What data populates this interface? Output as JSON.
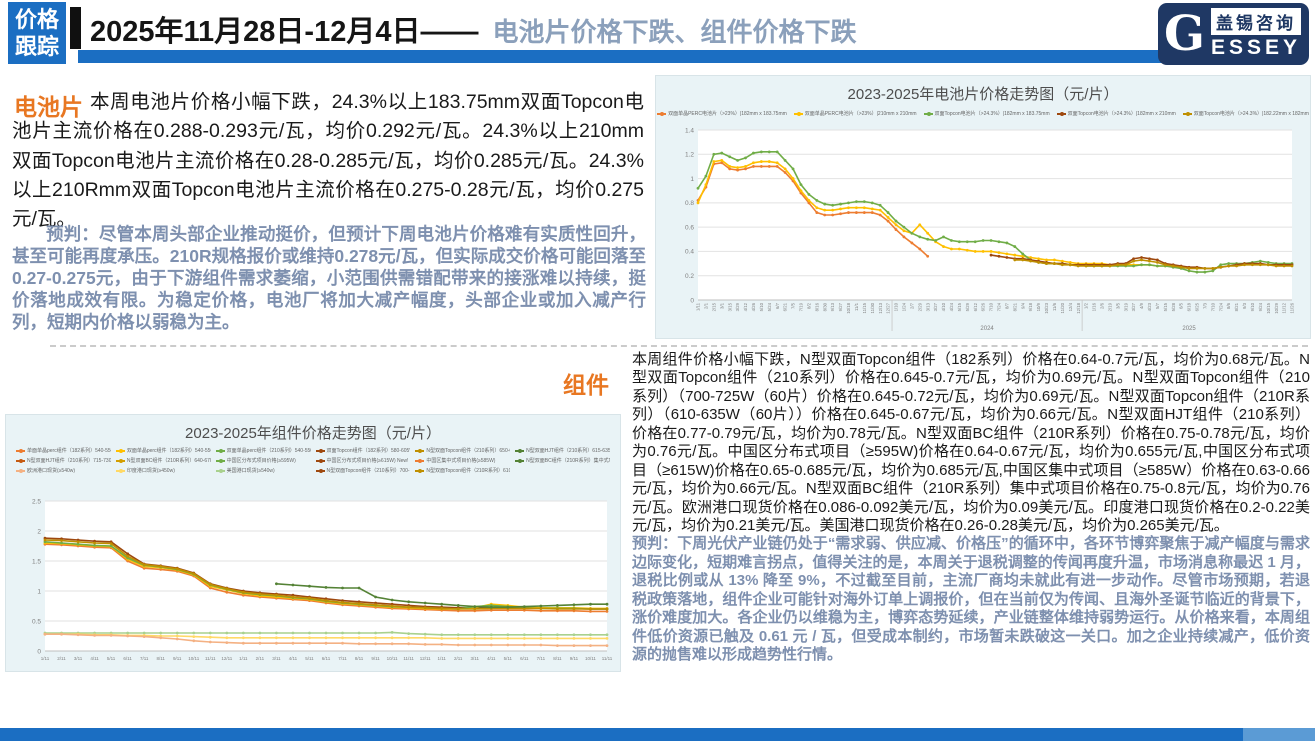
{
  "header": {
    "tab_line1": "价格",
    "tab_line2": "跟踪",
    "date_title": "2025年11月28日-12月4日——",
    "subtitle": "电池片价格下跌、组件价格下跌",
    "logo": {
      "g": "G",
      "cn": "盖锡咨询",
      "en_rest": "ESSEY"
    }
  },
  "cells_section": {
    "label": "电池片",
    "body": "本周电池片价格小幅下跌，24.3%以上183.75mm双面Topcon电池片主流价格在0.288-0.293元/瓦，均价0.292元/瓦。24.3%以上210mm双面Topcon电池片主流价格在0.28-0.285元/瓦，均价0.285元/瓦。24.3%以上210Rmm双面Topcon电池片主流价格在0.275-0.28元/瓦，均价0.275元/瓦。",
    "forecast": "预判：尽管本周头部企业推动挺价，但预计下周电池片价格难有实质性回升，甚至可能再度承压。210R规格报价或维持0.278元/瓦，但实际成交价格可能回落至0.27-0.275元，由于下游组件需求萎缩，小范围供需错配带来的接涨难以持续，挺价落地成效有限。为稳定价格，电池厂将加大减产幅度，头部企业或加入减产行列，短期内价格以弱稳为主。"
  },
  "modules_section": {
    "label": "组件",
    "body": "本周组件价格小幅下跌，N型双面Topcon组件（182系列）价格在0.64-0.7元/瓦，均价为0.68元/瓦。N型双面Topcon组件（210系列）价格在0.645-0.7元/瓦，均价为0.69元/瓦。N型双面Topcon组件（210系列）（700-725W（60片）价格在0.645-0.72元/瓦，均价为0.69元/瓦。N型双面Topcon组件（210R系列）（610-635W（60片））价格在0.645-0.67元/瓦，均价为0.66元/瓦。N型双面HJT组件（210系列）价格在0.77-0.79元/瓦，均价为0.78元/瓦。N型双面BC组件（210R系列）价格在0.75-0.78元/瓦，均价为0.76元/瓦。中国区分布式项目（≥595W)价格在0.64-0.67元/瓦，均价为0.655元/瓦,中国区分布式项目（≥615W)价格在0.65-0.685元/瓦，均价为0.685元/瓦,中国区集中式项目（≥585W）价格在0.63-0.66元/瓦，均价为0.66元/瓦。N型双面BC组件（210R系列）集中式项目价格在0.75-0.8元/瓦，均价为0.76元/瓦。欧洲港口现货价格在0.086-0.092美元/瓦，均价为0.09美元/瓦。印度港口现货价格在0.2-0.22美元/瓦，均价为0.21美元/瓦。美国港口现货价格在0.26-0.28美元/瓦，均价为0.265美元/瓦。",
    "forecast": "预判：下周光伏产业链仍处于“需求弱、供应减、价格压”的循环中，各环节博弈聚焦于减产幅度与需求边际变化，短期难言拐点，值得关注的是，本周关于退税调整的传闻再度升温，市场消息称最迟 1 月，退税比例或从 13% 降至 9%，不过截至目前，主流厂商均未就此有进一步动作。尽管市场预期，若退税政策落地，组件企业可能针对海外订单上调报价，但在当前仅为传闻、且海外圣诞节临近的背景下，涨价难度加大。各企业仍以维稳为主，博弈态势延续，产业链整体维持弱势运行。从价格来看，本周组件低价资源已触及 0.61 元 / 瓦，但受成本制约，市场暂未跌破这一关口。加之企业持续减产，低价资源的抛售难以形成趋势性行情。"
  },
  "colors": {
    "accent_blue": "#1B6EC2",
    "navy": "#1F3864",
    "orange_label": "#E87722",
    "forecast_text": "#7E90AF",
    "panel_bg": "#E9F3F6"
  },
  "chart_data": [
    {
      "type": "line",
      "name": "cells-price-chart",
      "title": "2023-2025年电池片价格走势图（元/片）",
      "ylim": [
        0,
        1.4
      ],
      "yticks": [
        0,
        0.2,
        0.4,
        0.6,
        0.8,
        1,
        1.2,
        1.4
      ],
      "grid": true,
      "legend_position": "top",
      "rotate_xlabels": true,
      "xlabels": [
        "1/11",
        "2/1",
        "2/15",
        "3/1",
        "3/15",
        "3/29",
        "4/12",
        "4/26",
        "5/10",
        "5/24",
        "6/7",
        "6/21",
        "7/5",
        "7/19",
        "8/2",
        "8/16",
        "8/30",
        "9/13",
        "9/27",
        "10/18",
        "11/1",
        "11/15",
        "11/30",
        "12/13",
        "12/27",
        "1/10",
        "1/24",
        "2/7",
        "2/29",
        "3/13",
        "3/27",
        "4/10",
        "4/24",
        "5/15",
        "5/29",
        "6/12",
        "6/26",
        "7/10",
        "7/24",
        "8/7",
        "8/21",
        "9/4",
        "9/18",
        "10/9",
        "10/23",
        "11/6",
        "11/20",
        "12/4",
        "12/18",
        "1/2",
        "1/16",
        "2/6",
        "2/19",
        "3/5",
        "3/19",
        "3/27",
        "4/9",
        "4/23",
        "5/7",
        "5/15",
        "5/28",
        "6/5",
        "6/18",
        "6/25",
        "7/3",
        "7/10",
        "7/24",
        "8/6",
        "8/21",
        "9/3",
        "9/10",
        "9/24",
        "10/15",
        "10/29",
        "11/12",
        "11/26"
      ],
      "year_groups": [
        {
          "label": "2024",
          "center": 36.5
        },
        {
          "label": "2025",
          "center": 62
        }
      ],
      "year_separators": [
        24.5,
        48.5
      ],
      "legend": [
        {
          "color": "#ED7D31",
          "label": "双面单晶PERC电池片（>23%）|182mm x 183.75mm"
        },
        {
          "color": "#FFC000",
          "label": "双面单晶PERC电池片（>23%）|210mm x 210mm"
        },
        {
          "color": "#70AD47",
          "label": "双面Topcon电池片（>24.3%）|182mm x 183.75mm"
        },
        {
          "color": "#9E480E",
          "label": "双面Topcon电池片（>24.3%）|182mm x 210mm"
        },
        {
          "color": "#BF8F00",
          "label": "双面Topcon电池片（>24.3%）|182.22mm x 182mm"
        }
      ],
      "series": [
        {
          "name": "双面单晶PERC电池片（>23%）|182mm x 183.75mm",
          "color": "#ED7D31",
          "x0": 0,
          "values": [
            0.82,
            0.93,
            1.12,
            1.13,
            1.08,
            1.07,
            1.08,
            1.1,
            1.1,
            1.1,
            1.1,
            1.05,
            0.98,
            0.88,
            0.8,
            0.72,
            0.7,
            0.7,
            0.71,
            0.72,
            0.72,
            0.72,
            0.72,
            0.7,
            0.65,
            0.58,
            0.52,
            0.47,
            0.42,
            0.36
          ]
        },
        {
          "name": "双面单晶PERC电池片（>23%）|210mm x 210mm",
          "color": "#FFC000",
          "x0": 0,
          "values": [
            0.8,
            0.95,
            1.14,
            1.15,
            1.1,
            1.09,
            1.1,
            1.13,
            1.14,
            1.14,
            1.13,
            1.08,
            1.0,
            0.9,
            0.82,
            0.76,
            0.74,
            0.74,
            0.75,
            0.76,
            0.76,
            0.76,
            0.75,
            0.74,
            0.68,
            0.62,
            0.57,
            0.55,
            0.62,
            0.55,
            0.48,
            0.44,
            0.42,
            0.42,
            0.41,
            0.4,
            0.4,
            0.4,
            0.39,
            0.38,
            0.37,
            0.36,
            0.35,
            0.34,
            0.33,
            0.33,
            0.32,
            0.31,
            0.3,
            0.3,
            0.3,
            0.3,
            0.29,
            0.29,
            0.29,
            0.29,
            0.29,
            0.29,
            0.28,
            0.28,
            0.28
          ]
        },
        {
          "name": "双面Topcon电池片（>24.3%）|182mm x 183.75mm",
          "color": "#70AD47",
          "x0": 0,
          "values": [
            0.92,
            1.02,
            1.2,
            1.21,
            1.18,
            1.15,
            1.17,
            1.21,
            1.22,
            1.22,
            1.22,
            1.15,
            1.08,
            0.95,
            0.87,
            0.82,
            0.79,
            0.78,
            0.79,
            0.8,
            0.81,
            0.81,
            0.8,
            0.78,
            0.72,
            0.65,
            0.6,
            0.55,
            0.52,
            0.5,
            0.49,
            0.52,
            0.49,
            0.48,
            0.48,
            0.48,
            0.49,
            0.49,
            0.48,
            0.47,
            0.44,
            0.38,
            0.33,
            0.31,
            0.3,
            0.3,
            0.3,
            0.29,
            0.29,
            0.28,
            0.28,
            0.28,
            0.28,
            0.28,
            0.28,
            0.28,
            0.29,
            0.29,
            0.28,
            0.28,
            0.27,
            0.26,
            0.24,
            0.23,
            0.23,
            0.24,
            0.29,
            0.3,
            0.3,
            0.3,
            0.31,
            0.32,
            0.31,
            0.3,
            0.3,
            0.3
          ]
        },
        {
          "name": "双面Topcon电池片（>24.3%）|182mm x 210mm",
          "color": "#9E480E",
          "x0": 37,
          "values": [
            0.37,
            0.36,
            0.35,
            0.34,
            0.34,
            0.33,
            0.32,
            0.31,
            0.3,
            0.3,
            0.29,
            0.29,
            0.29,
            0.29,
            0.29,
            0.29,
            0.3,
            0.3,
            0.34,
            0.35,
            0.34,
            0.33,
            0.3,
            0.29,
            0.28,
            0.27,
            0.27,
            0.26,
            0.26,
            0.27,
            0.28,
            0.29,
            0.3,
            0.3,
            0.3,
            0.29,
            0.29,
            0.29,
            0.29
          ]
        },
        {
          "name": "双面Topcon电池片（>24.3%）|182.22mm x 182mm",
          "color": "#BF8F00",
          "x0": 40,
          "values": [
            0.33,
            0.33,
            0.32,
            0.31,
            0.3,
            0.3,
            0.29,
            0.29,
            0.28,
            0.28,
            0.28,
            0.28,
            0.28,
            0.29,
            0.29,
            0.32,
            0.33,
            0.32,
            0.31,
            0.29,
            0.28,
            0.27,
            0.26,
            0.26,
            0.26,
            0.26,
            0.27,
            0.28,
            0.28,
            0.29,
            0.29,
            0.29,
            0.29,
            0.28,
            0.28,
            0.28
          ]
        }
      ]
    },
    {
      "type": "line",
      "name": "modules-price-chart",
      "title": "2023-2025年组件价格走势图（元/片）",
      "ylim": [
        0,
        2.5
      ],
      "yticks": [
        0,
        0.5,
        1,
        1.5,
        2,
        2.5
      ],
      "grid": true,
      "legend_position": "top",
      "rotate_xlabels": false,
      "xlabels": [
        "1/11",
        "2/11",
        "3/11",
        "4/11",
        "5/11",
        "6/11",
        "7/11",
        "8/11",
        "9/11",
        "10/11",
        "11/11",
        "12/11",
        "1/11",
        "2/11",
        "3/11",
        "4/11",
        "5/11",
        "6/11",
        "7/11",
        "8/11",
        "9/11",
        "10/11",
        "11/11",
        "12/11",
        "1/11",
        "2/11",
        "3/11",
        "4/11",
        "5/11",
        "6/11",
        "7/11",
        "8/11",
        "9/11",
        "10/11",
        "11/11"
      ],
      "legend": [
        {
          "color": "#ED7D31",
          "label": "单面单晶perc组件（182系列）540-550W（72片）"
        },
        {
          "color": "#FFC000",
          "label": "双面单晶perc组件（182系列）540-550W（72片）"
        },
        {
          "color": "#70AD47",
          "label": "双面单晶perc组件（210系列）540-550W（55片）"
        },
        {
          "color": "#9E480E",
          "label": "双面Topcon组件（182系列）580-605W"
        },
        {
          "color": "#BF8F00",
          "label": "N型双面Topcon组件（210系列）650-655W（60片）"
        },
        {
          "color": "#548235",
          "label": "N型双面HJT组件（210系列）615-635W"
        },
        {
          "color": "#C55A11",
          "label": "N型双面HJT组件（210系列）715-730W NEW"
        },
        {
          "color": "#D39E00",
          "label": "N型双面BC组件（210R系列）640-670W"
        },
        {
          "color": "#70AD47",
          "label": "中国区分布式项目价格(≥595W)"
        },
        {
          "color": "#9E480E",
          "label": "中国区分布式项目价格(≥615W) New!"
        },
        {
          "color": "#ED7D31",
          "label": "中国区集中式项目价格(≥585W)"
        },
        {
          "color": "#548235",
          "label": "N型双面BC组件（210R系列）集中式项目价格640-670W"
        },
        {
          "color": "#F4B183",
          "label": "欧洲港口现货(≥540w)"
        },
        {
          "color": "#FFD966",
          "label": "印度港口现货(≥450w)"
        },
        {
          "color": "#A9D18E",
          "label": "美国港口现货(≥540w)"
        },
        {
          "color": "#9E480E",
          "label": "N型双面Topcon组件（210系列）700-725W（60片）"
        },
        {
          "color": "#BF8F00",
          "label": "N型双面Topcon组件（210R系列）610-635W（60片）"
        }
      ],
      "series": [
        {
          "name": "双面Topcon组件（182系列）580-605W",
          "color": "#9E480E",
          "x0": 0,
          "values": [
            1.88,
            1.87,
            1.85,
            1.83,
            1.82,
            1.62,
            1.45,
            1.42,
            1.38,
            1.3,
            1.12,
            1.05,
            1.0,
            0.97,
            0.95,
            0.93,
            0.9,
            0.87,
            0.84,
            0.82,
            0.8,
            0.78,
            0.76,
            0.74,
            0.73,
            0.72,
            0.72,
            0.73,
            0.73,
            0.72,
            0.72,
            0.72,
            0.71,
            0.7,
            0.7
          ]
        },
        {
          "name": "单面单晶perc组件（182系列）540-550W（72片）",
          "color": "#ED7D31",
          "x0": 0,
          "values": [
            1.78,
            1.77,
            1.75,
            1.73,
            1.72,
            1.5,
            1.38,
            1.36,
            1.33,
            1.25,
            1.05,
            0.98,
            0.93,
            0.9,
            0.88,
            0.86,
            0.84,
            0.8,
            0.77,
            0.75,
            0.73,
            0.71,
            0.7,
            0.69,
            0.68,
            0.67,
            0.67,
            0.68,
            0.68,
            0.68,
            0.67,
            0.67,
            0.67,
            0.66,
            0.66
          ]
        },
        {
          "name": "双面单晶perc组件（182系列）540-550W（72片）",
          "color": "#FFC000",
          "x0": 0,
          "values": [
            1.8,
            1.79,
            1.77,
            1.75,
            1.74,
            1.53,
            1.41,
            1.39,
            1.35,
            1.27,
            1.08,
            1.02,
            0.96,
            0.92,
            0.9,
            0.88,
            0.86,
            0.82,
            0.79,
            0.77,
            0.75,
            0.73,
            0.72,
            0.71,
            0.7,
            0.7,
            0.72,
            0.78,
            0.76,
            0.73,
            0.72,
            0.72,
            0.72,
            0.71,
            0.71
          ]
        },
        {
          "name": "双面单晶perc组件（210系列）540-550W（55片）",
          "color": "#70AD47",
          "x0": 0,
          "values": [
            1.82,
            1.8,
            1.78,
            1.76,
            1.75,
            1.55,
            1.43,
            1.4,
            1.36,
            1.28,
            1.1,
            1.03,
            0.97,
            0.94,
            0.92,
            0.89,
            0.87,
            0.83,
            0.8,
            0.78,
            0.76,
            0.74,
            0.73,
            0.72,
            0.71,
            0.7,
            0.74,
            0.76,
            0.74,
            0.72,
            0.71,
            0.71,
            0.71,
            0.7,
            0.7
          ]
        },
        {
          "name": "N型双面Topcon组件（210系列）650-655W（60片）",
          "color": "#BF8F00",
          "x0": 0,
          "values": [
            1.85,
            1.84,
            1.82,
            1.8,
            1.79,
            1.58,
            1.44,
            1.41,
            1.37,
            1.29,
            1.11,
            1.04,
            0.98,
            0.95,
            0.93,
            0.9,
            0.88,
            0.84,
            0.81,
            0.79,
            0.77,
            0.75,
            0.73,
            0.72,
            0.71,
            0.7,
            0.7,
            0.71,
            0.71,
            0.71,
            0.71,
            0.7,
            0.7,
            0.7,
            0.7
          ]
        },
        {
          "name": "N型双面HJT组件（210系列）615-635W",
          "color": "#548235",
          "x0": 14,
          "values": [
            1.12,
            1.1,
            1.08,
            1.06,
            1.05,
            1.05,
            0.9,
            0.85,
            0.82,
            0.8,
            0.78,
            0.76,
            0.74,
            0.73,
            0.73,
            0.74,
            0.75,
            0.76,
            0.77,
            0.78,
            0.78
          ]
        },
        {
          "name": "美国港口现货(≥540w)",
          "color": "#A9D18E",
          "x0": 0,
          "values": [
            0.3,
            0.3,
            0.3,
            0.3,
            0.3,
            0.3,
            0.3,
            0.3,
            0.3,
            0.3,
            0.3,
            0.3,
            0.3,
            0.3,
            0.3,
            0.3,
            0.3,
            0.3,
            0.3,
            0.3,
            0.3,
            0.31,
            0.29,
            0.28,
            0.27,
            0.27,
            0.27,
            0.27,
            0.27,
            0.27,
            0.27,
            0.27,
            0.27,
            0.27,
            0.27
          ]
        },
        {
          "name": "印度港口现货(≥450w)",
          "color": "#FFD966",
          "x0": 0,
          "values": [
            0.28,
            0.28,
            0.28,
            0.27,
            0.27,
            0.26,
            0.26,
            0.25,
            0.25,
            0.24,
            0.23,
            0.22,
            0.22,
            0.22,
            0.22,
            0.22,
            0.22,
            0.22,
            0.22,
            0.22,
            0.22,
            0.22,
            0.22,
            0.22,
            0.21,
            0.21,
            0.21,
            0.21,
            0.21,
            0.21,
            0.21,
            0.21,
            0.21,
            0.21,
            0.21
          ]
        },
        {
          "name": "欧洲港口现货(≥540w)",
          "color": "#F4B183",
          "x0": 0,
          "values": [
            0.28,
            0.28,
            0.27,
            0.26,
            0.26,
            0.25,
            0.24,
            0.22,
            0.2,
            0.17,
            0.15,
            0.14,
            0.13,
            0.13,
            0.13,
            0.13,
            0.13,
            0.13,
            0.13,
            0.12,
            0.12,
            0.12,
            0.12,
            0.11,
            0.11,
            0.1,
            0.1,
            0.1,
            0.1,
            0.1,
            0.1,
            0.09,
            0.09,
            0.09,
            0.09
          ]
        }
      ]
    }
  ]
}
